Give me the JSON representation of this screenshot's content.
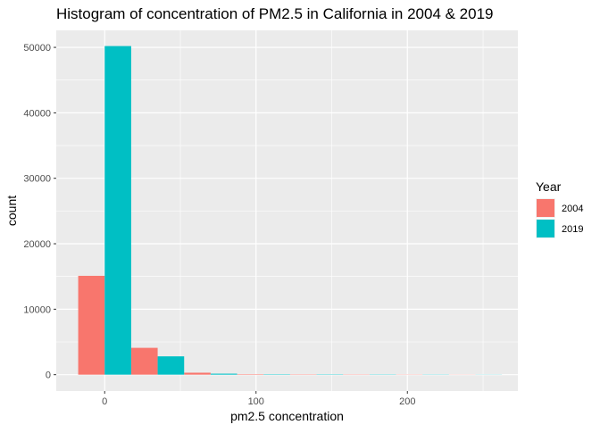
{
  "chart_data": {
    "type": "bar",
    "title": "Histogram of concentration of PM2.5 in California in 2004 & 2019",
    "xlabel": "pm2.5 concentration",
    "ylabel": "count",
    "xlim": [
      -32,
      273
    ],
    "ylim": [
      -2500,
      52600
    ],
    "x_ticks": [
      0,
      100,
      200
    ],
    "y_ticks": [
      0,
      10000,
      20000,
      30000,
      40000,
      50000
    ],
    "bin_width": 17.5,
    "legend": {
      "title": "Year",
      "position": "right"
    },
    "series": [
      {
        "name": "2004",
        "color": "#F8766D",
        "x": [
          -8.75,
          26.25,
          61.25,
          96.25,
          131.25,
          166.25,
          201.25,
          236.25
        ],
        "values": [
          15100,
          4100,
          300,
          70,
          50,
          40,
          30,
          20
        ]
      },
      {
        "name": "2019",
        "color": "#00BFC4",
        "x": [
          8.75,
          43.75,
          78.75,
          113.75,
          148.75,
          183.75,
          218.75,
          253.75
        ],
        "values": [
          50200,
          2800,
          150,
          60,
          50,
          40,
          30,
          20
        ]
      }
    ],
    "grid": true,
    "background": "#EBEBEB"
  }
}
